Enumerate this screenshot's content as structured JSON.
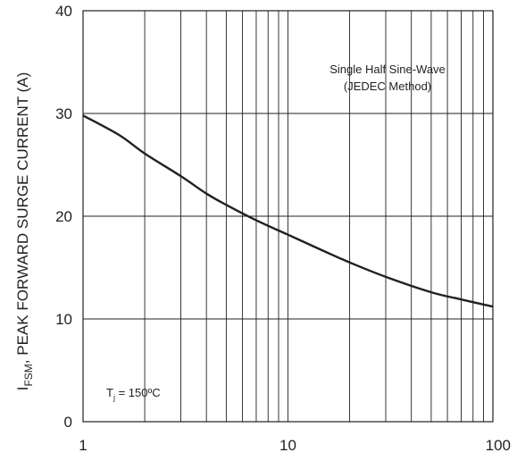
{
  "chart_data": {
    "type": "line",
    "title": "",
    "xlabel": "",
    "ylabel": {
      "prefix": "I",
      "subscript": "FSM",
      "text": ", PEAK FORWARD SURGE CURRENT (A)"
    },
    "x_scale": "log",
    "xlim": [
      1,
      100
    ],
    "ylim": [
      0,
      40
    ],
    "x_ticks": [
      1,
      10,
      100
    ],
    "y_ticks": [
      0,
      10,
      20,
      30,
      40
    ],
    "x_tick_labels": [
      "1",
      "10",
      "100"
    ],
    "y_tick_labels": [
      "0",
      "10",
      "20",
      "30",
      "40"
    ],
    "grid": true,
    "series": [
      {
        "x": [
          1,
          1.5,
          2,
          3,
          4,
          5,
          7,
          10,
          15,
          20,
          30,
          50,
          70,
          100
        ],
        "y": [
          29.8,
          27.9,
          26.1,
          23.9,
          22.2,
          21.1,
          19.6,
          18.2,
          16.6,
          15.5,
          14.1,
          12.6,
          11.9,
          11.2
        ]
      }
    ],
    "annotations": {
      "note_line1": "Single Half Sine-Wave",
      "note_line2": "(JEDEC Method)",
      "temp_prefix": "T",
      "temp_subscript": "j",
      "temp_text": " = 150ºC"
    },
    "colors": {
      "line": "#231f20",
      "grid": "#231f20",
      "frame": "#231f20"
    }
  }
}
